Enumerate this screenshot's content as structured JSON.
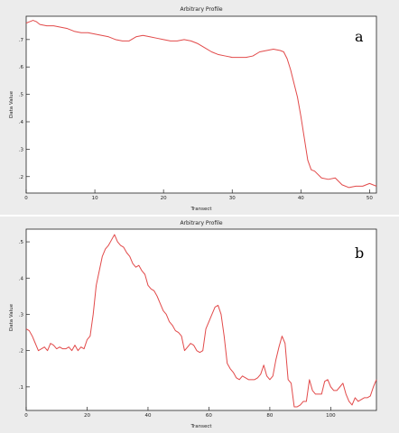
{
  "chart_data": [
    {
      "type": "line",
      "panel_label": "a",
      "title": "Arbitrary Profile",
      "xlabel": "Transect",
      "ylabel": "Data Value",
      "xlim": [
        0,
        51
      ],
      "ylim": [
        0.14,
        0.785
      ],
      "xticks": [
        0,
        10,
        20,
        30,
        40,
        50
      ],
      "yticks": [
        0.2,
        0.3,
        0.4,
        0.5,
        0.6,
        0.7
      ],
      "grid": false,
      "color": "#e24a4a",
      "x": [
        0,
        0.5,
        1,
        1.5,
        2,
        3,
        4,
        5,
        6,
        7,
        8,
        9,
        10,
        11,
        12,
        13,
        14,
        15,
        16,
        17,
        18,
        19,
        20,
        21,
        22,
        23,
        24,
        25,
        26,
        27,
        28,
        29,
        30,
        31,
        32,
        33,
        34,
        35,
        36,
        37,
        37.5,
        38,
        38.5,
        39,
        39.5,
        40,
        40.5,
        41,
        41.5,
        42,
        43,
        44,
        45,
        46,
        47,
        48,
        49,
        50,
        50.5,
        51
      ],
      "y": [
        0.76,
        0.765,
        0.77,
        0.765,
        0.755,
        0.75,
        0.75,
        0.745,
        0.74,
        0.73,
        0.725,
        0.725,
        0.72,
        0.715,
        0.71,
        0.7,
        0.695,
        0.695,
        0.71,
        0.715,
        0.71,
        0.705,
        0.7,
        0.695,
        0.695,
        0.7,
        0.695,
        0.685,
        0.67,
        0.655,
        0.645,
        0.64,
        0.635,
        0.635,
        0.635,
        0.64,
        0.655,
        0.66,
        0.665,
        0.66,
        0.655,
        0.63,
        0.59,
        0.54,
        0.49,
        0.42,
        0.34,
        0.26,
        0.225,
        0.22,
        0.195,
        0.19,
        0.195,
        0.17,
        0.16,
        0.165,
        0.165,
        0.175,
        0.17,
        0.165
      ]
    },
    {
      "type": "line",
      "panel_label": "b",
      "title": "Arbitrary Profile",
      "xlabel": "Transect",
      "ylabel": "Data Value",
      "xlim": [
        0,
        115
      ],
      "ylim": [
        0.035,
        0.535
      ],
      "xticks": [
        0,
        20,
        40,
        60,
        80,
        100
      ],
      "yticks": [
        0.1,
        0.2,
        0.3,
        0.4,
        0.5
      ],
      "grid": false,
      "color": "#e24a4a",
      "x": [
        0,
        1,
        2,
        3,
        4,
        5,
        6,
        7,
        8,
        9,
        10,
        11,
        12,
        13,
        14,
        15,
        16,
        17,
        18,
        19,
        20,
        21,
        22,
        23,
        24,
        25,
        26,
        27,
        28,
        29,
        30,
        31,
        32,
        33,
        34,
        35,
        36,
        37,
        38,
        39,
        40,
        41,
        42,
        43,
        44,
        45,
        46,
        47,
        48,
        49,
        50,
        51,
        52,
        53,
        54,
        55,
        56,
        57,
        58,
        59,
        60,
        61,
        62,
        63,
        64,
        65,
        66,
        67,
        68,
        69,
        70,
        71,
        72,
        73,
        74,
        75,
        76,
        77,
        78,
        79,
        80,
        81,
        82,
        83,
        84,
        85,
        86,
        87,
        88,
        89,
        90,
        91,
        92,
        93,
        94,
        95,
        96,
        97,
        98,
        99,
        100,
        101,
        102,
        103,
        104,
        105,
        106,
        107,
        108,
        109,
        110,
        111,
        112,
        113,
        114,
        115
      ],
      "y": [
        0.26,
        0.255,
        0.24,
        0.22,
        0.2,
        0.205,
        0.21,
        0.2,
        0.22,
        0.215,
        0.205,
        0.21,
        0.205,
        0.205,
        0.21,
        0.2,
        0.215,
        0.2,
        0.21,
        0.205,
        0.23,
        0.24,
        0.3,
        0.38,
        0.42,
        0.46,
        0.48,
        0.49,
        0.505,
        0.52,
        0.5,
        0.49,
        0.485,
        0.47,
        0.46,
        0.44,
        0.43,
        0.435,
        0.42,
        0.41,
        0.38,
        0.37,
        0.365,
        0.35,
        0.33,
        0.31,
        0.3,
        0.28,
        0.27,
        0.255,
        0.25,
        0.24,
        0.2,
        0.21,
        0.22,
        0.215,
        0.2,
        0.195,
        0.2,
        0.26,
        0.28,
        0.3,
        0.32,
        0.325,
        0.3,
        0.24,
        0.165,
        0.15,
        0.14,
        0.125,
        0.12,
        0.13,
        0.125,
        0.12,
        0.12,
        0.12,
        0.125,
        0.135,
        0.16,
        0.13,
        0.12,
        0.13,
        0.175,
        0.21,
        0.24,
        0.22,
        0.12,
        0.11,
        0.045,
        0.045,
        0.05,
        0.06,
        0.06,
        0.12,
        0.09,
        0.08,
        0.08,
        0.08,
        0.115,
        0.12,
        0.1,
        0.09,
        0.09,
        0.1,
        0.11,
        0.08,
        0.06,
        0.05,
        0.07,
        0.06,
        0.065,
        0.07,
        0.07,
        0.075,
        0.1,
        0.12
      ]
    }
  ]
}
